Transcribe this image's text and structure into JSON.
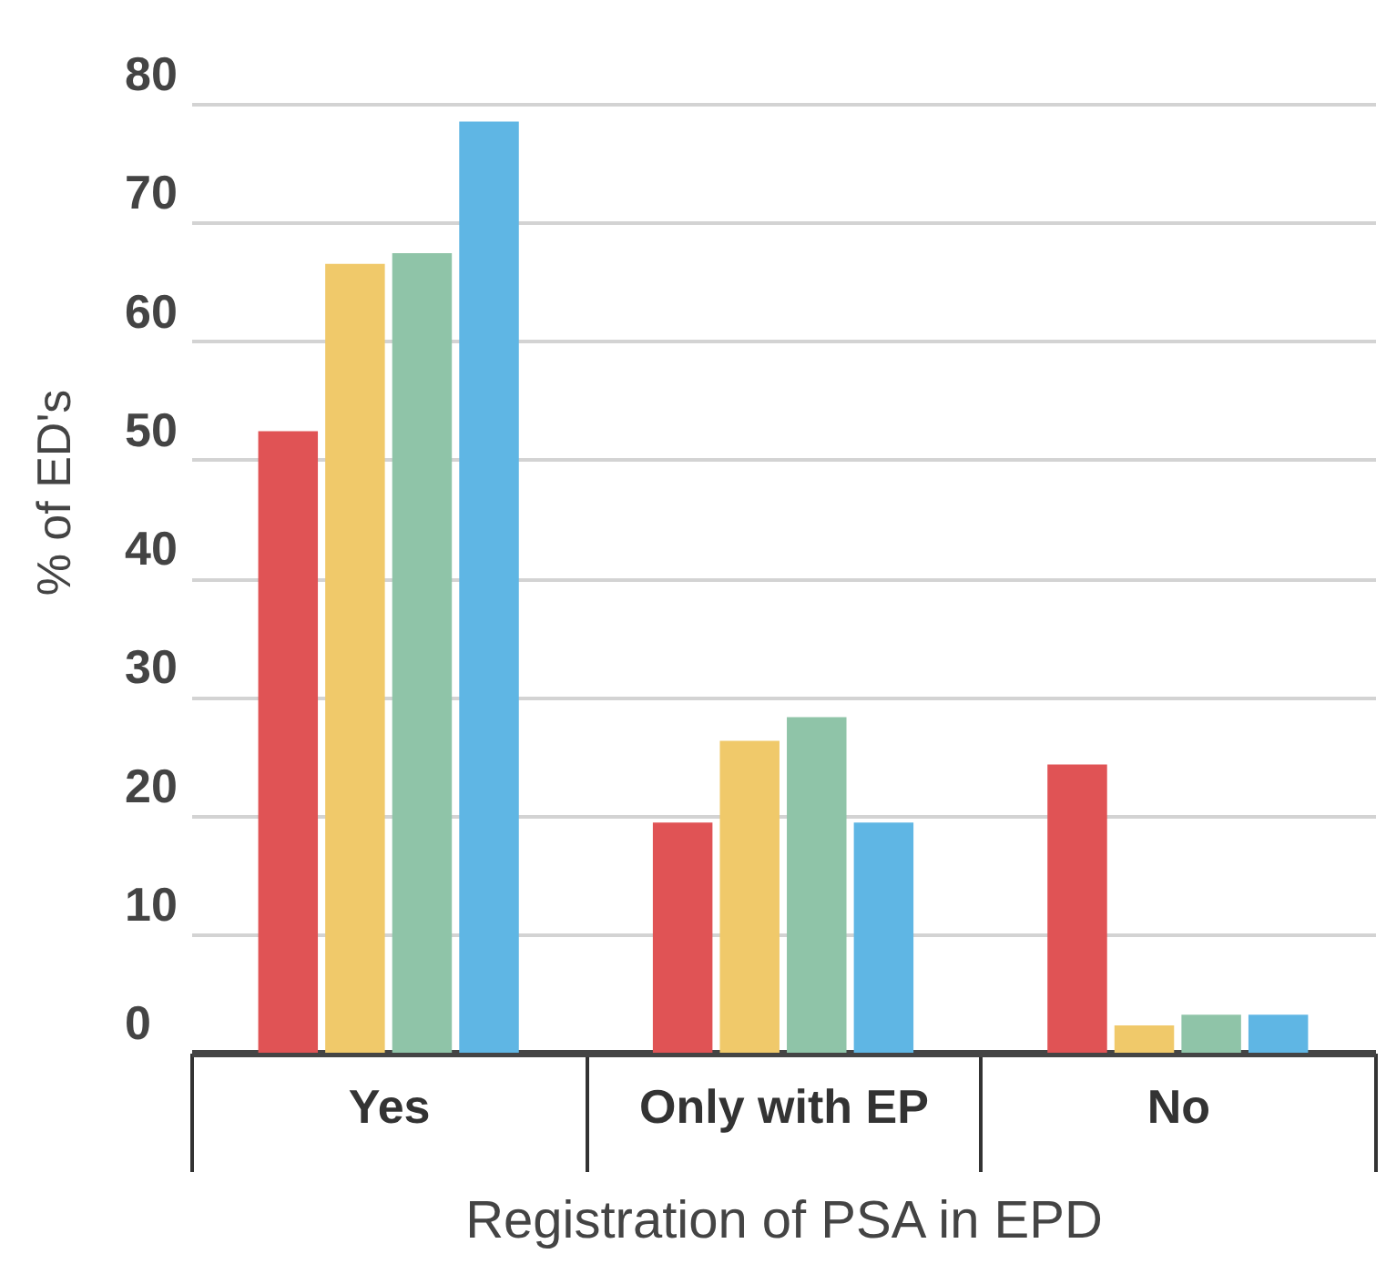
{
  "chart_data": {
    "type": "bar",
    "xlabel": "Registration of PSA in EPD",
    "ylabel": "% of ED's",
    "categories": [
      "Yes",
      "Only with EP",
      "No"
    ],
    "series": [
      {
        "color": "#e05355",
        "values": [
          52.4,
          19.4,
          24.3
        ]
      },
      {
        "color": "#f0c96a",
        "values": [
          66.5,
          26.3,
          2.3
        ]
      },
      {
        "color": "#8fc4a8",
        "values": [
          67.4,
          28.3,
          3.2
        ]
      },
      {
        "color": "#5fb6e4",
        "values": [
          78.5,
          19.4,
          3.2
        ]
      }
    ],
    "ylim": [
      0,
      80
    ],
    "yticks": [
      0,
      10,
      20,
      30,
      40,
      50,
      60,
      70,
      80
    ],
    "grid": "y",
    "legend": false
  }
}
